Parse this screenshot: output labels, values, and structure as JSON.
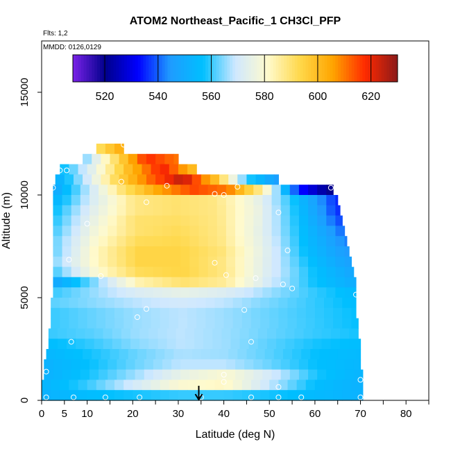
{
  "chart_data": {
    "type": "heatmap",
    "title": "ATOM2 Northeast_Pacific_1 CH3Cl_PFP",
    "annotations": [
      "Flts: 1,2",
      "MMDD: 0126,0129"
    ],
    "xlabel": "Latitude (deg N)",
    "ylabel": "Altitude (m)",
    "xlim": [
      0,
      85
    ],
    "ylim": [
      0,
      17500
    ],
    "x_ticks": [
      0,
      5,
      10,
      20,
      30,
      40,
      50,
      60,
      70,
      80
    ],
    "y_ticks": [
      0,
      5000,
      10000,
      15000
    ],
    "colorbar": {
      "range": [
        508,
        630
      ],
      "ticks": [
        520,
        540,
        560,
        580,
        600,
        620
      ],
      "colors": [
        "#7a22e8",
        "#00008b",
        "#0000ff",
        "#1f9cff",
        "#00bfff",
        "#cfe8ff",
        "#fffacd",
        "#ffd84a",
        "#ffa500",
        "#ff2a00",
        "#8b1a1a"
      ]
    },
    "arrow_latitude": 34.5,
    "grid": false,
    "legend": "colorbar top"
  },
  "heatmap_rows": [
    {
      "alt": 12250,
      "lat": [
        12,
        18
      ],
      "v": [
        590,
        605
      ]
    },
    {
      "alt": 11750,
      "lat": [
        9,
        30
      ],
      "v": [
        562,
        590,
        618,
        610
      ]
    },
    {
      "alt": 11250,
      "lat": [
        4,
        34
      ],
      "v": [
        555,
        575,
        600,
        620,
        598
      ]
    },
    {
      "alt": 10750,
      "lat": [
        3,
        52
      ],
      "v": [
        550,
        570,
        595,
        612,
        625,
        600,
        560,
        545
      ]
    },
    {
      "alt": 10250,
      "lat": [
        2.5,
        64
      ],
      "v": [
        548,
        568,
        590,
        605,
        615,
        610,
        585,
        535,
        518
      ]
    },
    {
      "alt": 9750,
      "lat": [
        2.5,
        65
      ],
      "v": [
        552,
        572,
        588,
        590,
        588,
        576,
        556,
        535
      ]
    },
    {
      "alt": 9250,
      "lat": [
        2.5,
        65.5
      ],
      "v": [
        556,
        574,
        588,
        590,
        588,
        576,
        556,
        535
      ]
    },
    {
      "alt": 8750,
      "lat": [
        2.5,
        66
      ],
      "v": [
        558,
        576,
        590,
        591,
        588,
        575,
        556,
        537
      ]
    },
    {
      "alt": 8250,
      "lat": [
        2.5,
        66.5
      ],
      "v": [
        560,
        578,
        590,
        592,
        588,
        574,
        556,
        540
      ]
    },
    {
      "alt": 7750,
      "lat": [
        2.5,
        67
      ],
      "v": [
        562,
        580,
        592,
        593,
        588,
        574,
        556,
        542
      ]
    },
    {
      "alt": 7250,
      "lat": [
        2.5,
        67.5
      ],
      "v": [
        562,
        582,
        594,
        594,
        589,
        574,
        556,
        544
      ]
    },
    {
      "alt": 6750,
      "lat": [
        2.5,
        68
      ],
      "v": [
        564,
        582,
        594,
        594,
        588,
        573,
        557,
        546
      ]
    },
    {
      "alt": 6250,
      "lat": [
        2.5,
        68.5
      ],
      "v": [
        560,
        580,
        592,
        594,
        588,
        572,
        558,
        548
      ]
    },
    {
      "alt": 5750,
      "lat": [
        2.5,
        69
      ],
      "v": [
        548,
        565,
        584,
        590,
        586,
        570,
        558,
        550
      ]
    },
    {
      "alt": 5250,
      "lat": [
        2.5,
        69
      ],
      "v": [
        560,
        566,
        572,
        575,
        572,
        566,
        560,
        555
      ]
    },
    {
      "alt": 4750,
      "lat": [
        2,
        69
      ],
      "v": [
        562,
        565,
        568,
        570,
        568,
        564,
        560,
        556
      ]
    },
    {
      "alt": 4250,
      "lat": [
        2,
        69
      ],
      "v": [
        560,
        563,
        566,
        568,
        566,
        563,
        560,
        557
      ]
    },
    {
      "alt": 3750,
      "lat": [
        2,
        69.5
      ],
      "v": [
        560,
        563,
        566,
        568,
        566,
        563,
        560,
        557
      ]
    },
    {
      "alt": 3250,
      "lat": [
        1.5,
        69.5
      ],
      "v": [
        560,
        562,
        566,
        568,
        566,
        563,
        560,
        558
      ]
    },
    {
      "alt": 2750,
      "lat": [
        1.5,
        70
      ],
      "v": [
        556,
        560,
        565,
        568,
        566,
        562,
        558,
        556
      ]
    },
    {
      "alt": 2250,
      "lat": [
        1,
        70
      ],
      "v": [
        554,
        558,
        563,
        567,
        566,
        562,
        557,
        555
      ]
    },
    {
      "alt": 1750,
      "lat": [
        0.5,
        70
      ],
      "v": [
        552,
        557,
        563,
        568,
        568,
        563,
        557,
        554
      ]
    },
    {
      "alt": 1250,
      "lat": [
        0.5,
        70.5
      ],
      "v": [
        552,
        558,
        566,
        575,
        580,
        570,
        558,
        553
      ]
    },
    {
      "alt": 750,
      "lat": [
        0,
        70.5
      ],
      "v": [
        553,
        560,
        570,
        580,
        582,
        568,
        556,
        552
      ]
    },
    {
      "alt": 250,
      "lat": [
        0,
        70.5
      ],
      "v": [
        552,
        556,
        558,
        560,
        560,
        558,
        555,
        552
      ]
    }
  ],
  "sample_points": [
    [
      1,
      150
    ],
    [
      7,
      150
    ],
    [
      14,
      150
    ],
    [
      21.5,
      150
    ],
    [
      35,
      150
    ],
    [
      46,
      150
    ],
    [
      52,
      150
    ],
    [
      57,
      150
    ],
    [
      70,
      150
    ],
    [
      1,
      1400
    ],
    [
      52,
      650
    ],
    [
      70,
      1000
    ],
    [
      40,
      1250
    ],
    [
      40,
      900
    ],
    [
      6.5,
      2850
    ],
    [
      46,
      2850
    ],
    [
      23,
      4450
    ],
    [
      21,
      4050
    ],
    [
      44.5,
      4400
    ],
    [
      1,
      4650
    ],
    [
      53,
      5650
    ],
    [
      55,
      5450
    ],
    [
      69,
      5150
    ],
    [
      13,
      6050
    ],
    [
      47,
      5950
    ],
    [
      40.5,
      6100
    ],
    [
      38,
      6700
    ],
    [
      6,
      6850
    ],
    [
      54,
      7300
    ],
    [
      10,
      8600
    ],
    [
      52,
      9150
    ],
    [
      38,
      10050
    ],
    [
      40,
      10000
    ],
    [
      43,
      10400
    ],
    [
      63.5,
      10350
    ],
    [
      2.5,
      10350
    ],
    [
      17.5,
      10650
    ],
    [
      27.5,
      10450
    ],
    [
      23,
      9650
    ],
    [
      4,
      11200
    ],
    [
      5.5,
      11200
    ],
    [
      18,
      12450
    ]
  ]
}
